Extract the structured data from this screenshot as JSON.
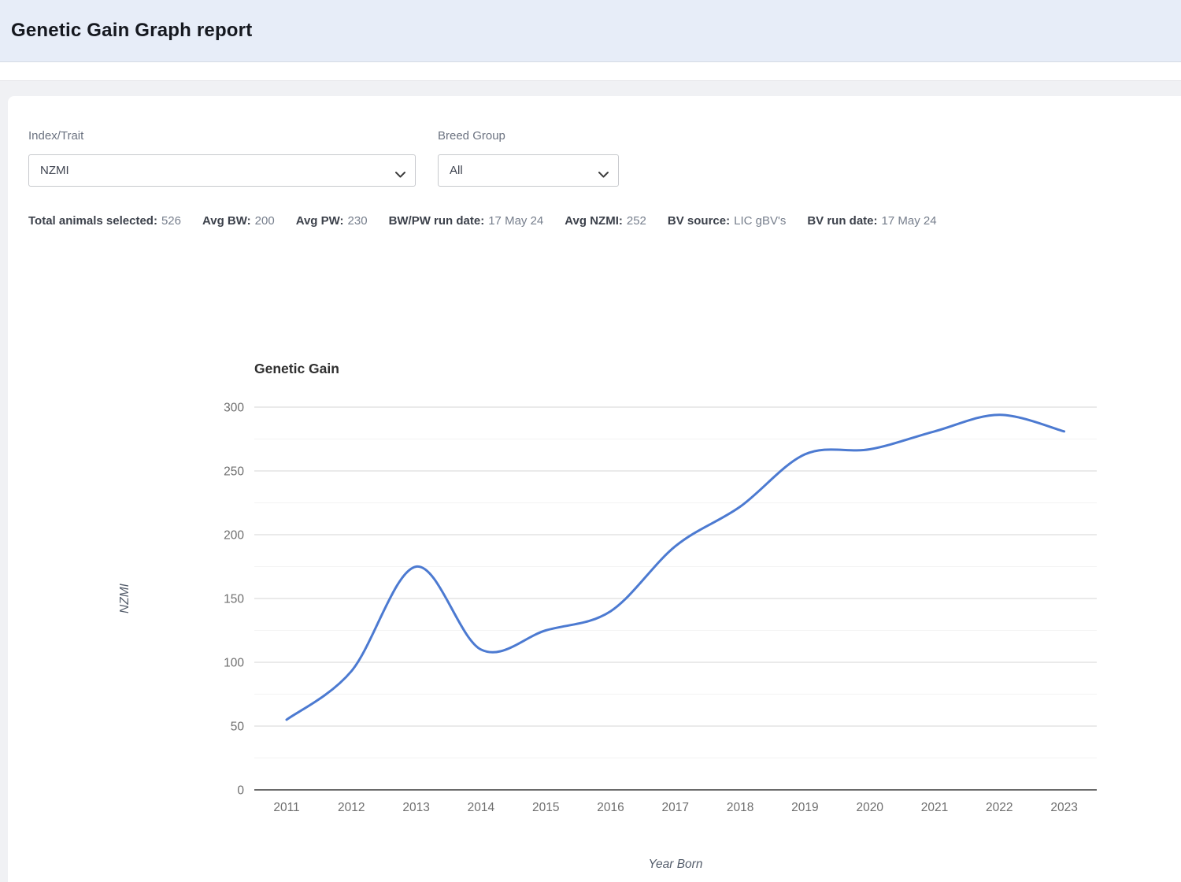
{
  "header": {
    "title": "Genetic Gain Graph report"
  },
  "filters": {
    "index_trait": {
      "label": "Index/Trait",
      "value": "NZMI"
    },
    "breed_group": {
      "label": "Breed Group",
      "value": "All"
    }
  },
  "stats": {
    "items": [
      {
        "label": "Total animals selected:",
        "value": "526"
      },
      {
        "label": "Avg BW:",
        "value": "200"
      },
      {
        "label": "Avg PW:",
        "value": "230"
      },
      {
        "label": "BW/PW run date:",
        "value": "17 May 24"
      },
      {
        "label": "Avg NZMI:",
        "value": "252"
      },
      {
        "label": "BV source:",
        "value": "LIC gBV's"
      },
      {
        "label": "BV run date:",
        "value": "17 May 24"
      }
    ]
  },
  "chart_data": {
    "type": "line",
    "title": "Genetic Gain",
    "xlabel": "Year Born",
    "ylabel": "NZMI",
    "categories": [
      2011,
      2012,
      2013,
      2014,
      2015,
      2016,
      2017,
      2018,
      2019,
      2020,
      2021,
      2022,
      2023
    ],
    "values": [
      55,
      93,
      175,
      110,
      125,
      140,
      191,
      222,
      263,
      267,
      281,
      294,
      281
    ],
    "ylim": [
      0,
      300
    ],
    "y_major_step": 50,
    "y_minor_step": 25,
    "grid": true,
    "smooth": true,
    "legend": "none",
    "line_color": "#4c7ad1",
    "major_grid_color": "#e4e4e4",
    "minor_grid_color": "#f3f3f3",
    "axis_color": "#6a6a6a"
  }
}
